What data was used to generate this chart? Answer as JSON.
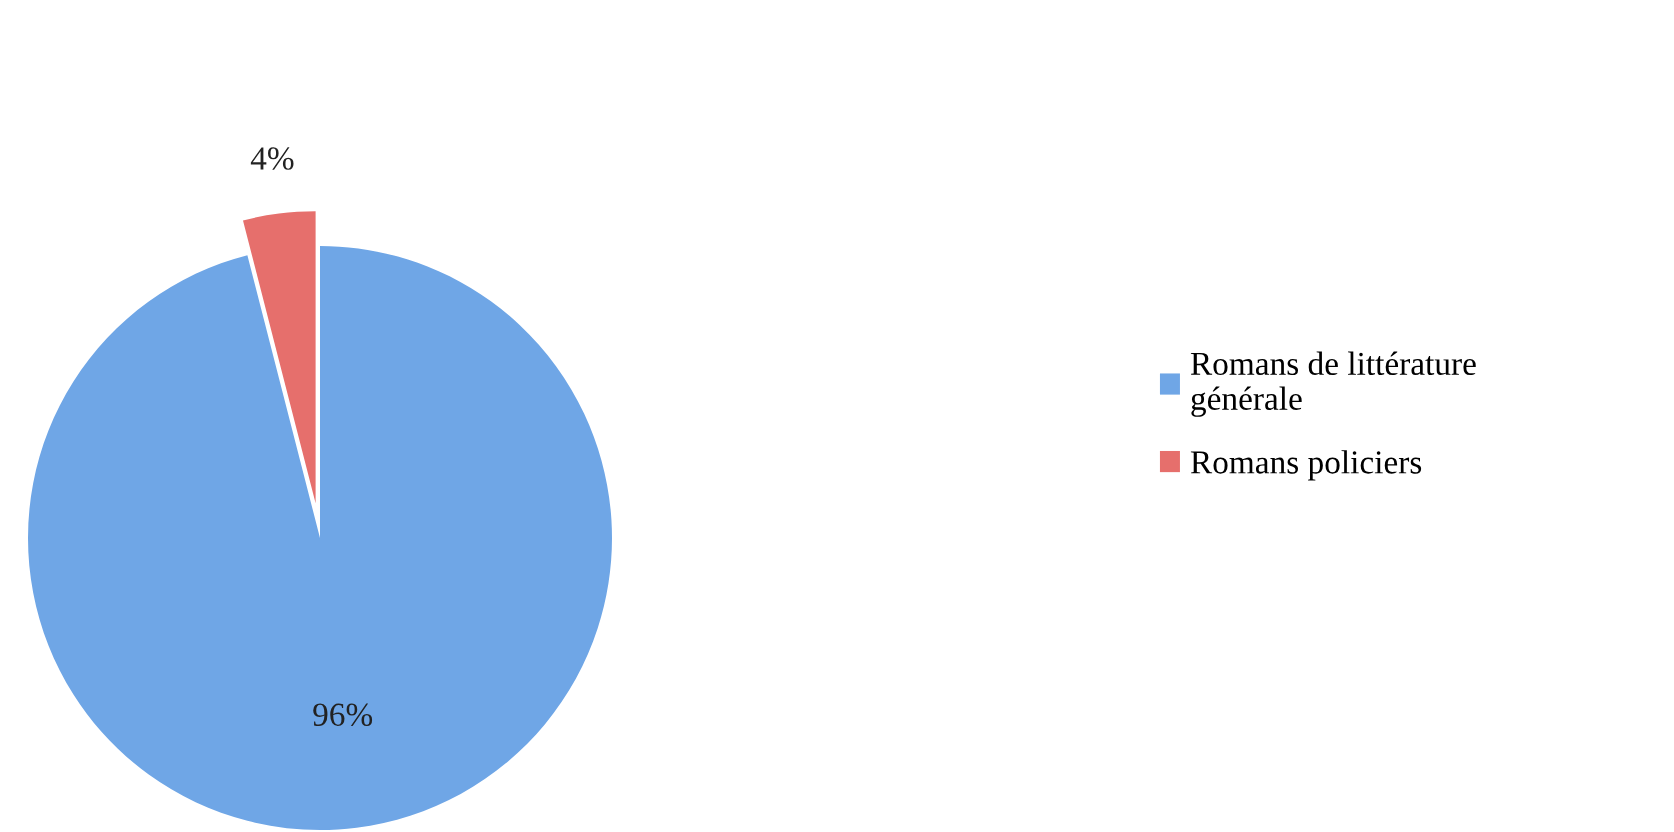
{
  "chart_data": {
    "type": "pie",
    "categories": [
      "Romans de littérature générale",
      "Romans policiers"
    ],
    "values": [
      96,
      4
    ],
    "colors": [
      "#6fa6e6",
      "#e66f6c"
    ],
    "value_labels": [
      "96%",
      "4%"
    ],
    "legend": "right"
  }
}
